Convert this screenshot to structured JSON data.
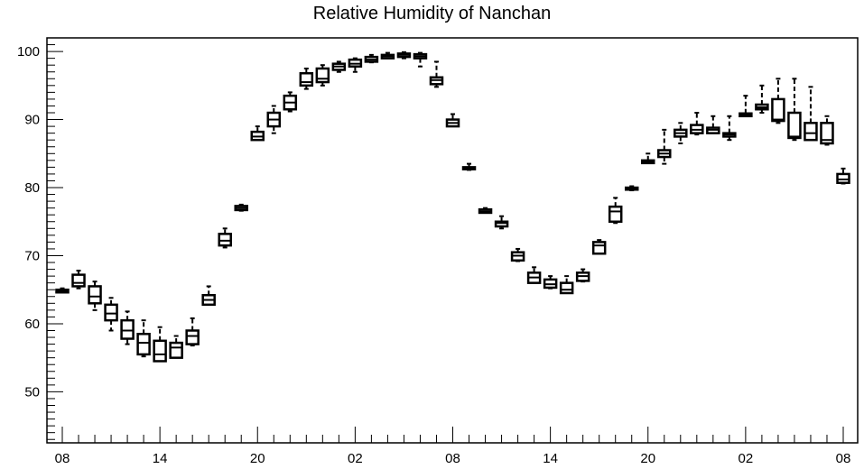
{
  "chart_data": {
    "type": "box",
    "title": "Relative Humidity of Nanchan",
    "xlabel": "",
    "ylabel": "",
    "ylim": [
      42.5,
      102
    ],
    "yticks": [
      50,
      60,
      70,
      80,
      90,
      100
    ],
    "x_tick_labels": [
      "08",
      "14",
      "20",
      "02",
      "08",
      "14",
      "20",
      "02",
      "08"
    ],
    "x_tick_hours": [
      0,
      6,
      12,
      18,
      24,
      30,
      36,
      42,
      48
    ],
    "grid": false,
    "boxes": [
      {
        "hour": 0,
        "min": 64.6,
        "q1": 64.6,
        "median": 64.8,
        "q3": 65.0,
        "max": 65.2
      },
      {
        "hour": 1,
        "min": 65.2,
        "q1": 65.5,
        "median": 66.0,
        "q3": 67.2,
        "max": 67.8
      },
      {
        "hour": 2,
        "min": 62.0,
        "q1": 63.0,
        "median": 64.0,
        "q3": 65.5,
        "max": 66.2
      },
      {
        "hour": 3,
        "min": 59.0,
        "q1": 60.5,
        "median": 61.5,
        "q3": 62.8,
        "max": 63.8
      },
      {
        "hour": 4,
        "min": 57.0,
        "q1": 57.8,
        "median": 59.0,
        "q3": 60.5,
        "max": 61.8
      },
      {
        "hour": 5,
        "min": 55.2,
        "q1": 55.5,
        "median": 57.2,
        "q3": 58.5,
        "max": 60.5
      },
      {
        "hour": 6,
        "min": 54.5,
        "q1": 54.5,
        "median": 55.5,
        "q3": 57.5,
        "max": 59.5
      },
      {
        "hour": 7,
        "min": 55.0,
        "q1": 55.0,
        "median": 56.5,
        "q3": 57.2,
        "max": 58.2
      },
      {
        "hour": 8,
        "min": 56.8,
        "q1": 57.0,
        "median": 58.2,
        "q3": 59.0,
        "max": 60.8
      },
      {
        "hour": 9,
        "min": 62.8,
        "q1": 62.8,
        "median": 63.5,
        "q3": 64.2,
        "max": 65.5
      },
      {
        "hour": 10,
        "min": 71.2,
        "q1": 71.5,
        "median": 72.2,
        "q3": 73.2,
        "max": 74.0
      },
      {
        "hour": 11,
        "min": 76.6,
        "q1": 76.7,
        "median": 77.0,
        "q3": 77.3,
        "max": 77.5
      },
      {
        "hour": 12,
        "min": 87.0,
        "q1": 87.0,
        "median": 87.5,
        "q3": 88.2,
        "max": 89.0
      },
      {
        "hour": 13,
        "min": 88.0,
        "q1": 89.0,
        "median": 90.0,
        "q3": 91.0,
        "max": 92.0
      },
      {
        "hour": 14,
        "min": 91.2,
        "q1": 91.5,
        "median": 92.5,
        "q3": 93.5,
        "max": 94.0
      },
      {
        "hour": 15,
        "min": 94.5,
        "q1": 95.0,
        "median": 95.5,
        "q3": 96.8,
        "max": 97.5
      },
      {
        "hour": 16,
        "min": 95.0,
        "q1": 95.5,
        "median": 96.0,
        "q3": 97.5,
        "max": 98.0
      },
      {
        "hour": 17,
        "min": 97.0,
        "q1": 97.3,
        "median": 97.8,
        "q3": 98.2,
        "max": 98.5
      },
      {
        "hour": 18,
        "min": 97.0,
        "q1": 97.8,
        "median": 98.2,
        "q3": 98.8,
        "max": 99.0
      },
      {
        "hour": 19,
        "min": 98.4,
        "q1": 98.5,
        "median": 98.8,
        "q3": 99.2,
        "max": 99.5
      },
      {
        "hour": 20,
        "min": 99.0,
        "q1": 99.0,
        "median": 99.3,
        "q3": 99.5,
        "max": 99.8
      },
      {
        "hour": 21,
        "min": 99.0,
        "q1": 99.2,
        "median": 99.5,
        "q3": 99.7,
        "max": 99.9
      },
      {
        "hour": 22,
        "min": 97.8,
        "q1": 99.0,
        "median": 99.3,
        "q3": 99.6,
        "max": 99.8
      },
      {
        "hour": 23,
        "min": 94.8,
        "q1": 95.2,
        "median": 95.8,
        "q3": 96.2,
        "max": 98.5
      },
      {
        "hour": 24,
        "min": 89.0,
        "q1": 89.0,
        "median": 89.5,
        "q3": 90.0,
        "max": 90.8
      },
      {
        "hour": 25,
        "min": 82.6,
        "q1": 82.7,
        "median": 82.9,
        "q3": 83.0,
        "max": 83.5
      },
      {
        "hour": 26,
        "min": 76.3,
        "q1": 76.3,
        "median": 76.5,
        "q3": 76.8,
        "max": 77.0
      },
      {
        "hour": 27,
        "min": 74.0,
        "q1": 74.3,
        "median": 74.8,
        "q3": 75.0,
        "max": 75.8
      },
      {
        "hour": 28,
        "min": 69.2,
        "q1": 69.3,
        "median": 70.0,
        "q3": 70.5,
        "max": 71.0
      },
      {
        "hour": 29,
        "min": 66.0,
        "q1": 66.0,
        "median": 66.8,
        "q3": 67.5,
        "max": 68.3
      },
      {
        "hour": 30,
        "min": 65.2,
        "q1": 65.3,
        "median": 65.8,
        "q3": 66.5,
        "max": 67.0
      },
      {
        "hour": 31,
        "min": 64.5,
        "q1": 64.5,
        "median": 65.0,
        "q3": 66.0,
        "max": 67.0
      },
      {
        "hour": 32,
        "min": 66.2,
        "q1": 66.3,
        "median": 67.0,
        "q3": 67.5,
        "max": 68.0
      },
      {
        "hour": 33,
        "min": 70.3,
        "q1": 70.3,
        "median": 71.5,
        "q3": 72.0,
        "max": 72.3
      },
      {
        "hour": 34,
        "min": 74.8,
        "q1": 75.0,
        "median": 76.5,
        "q3": 77.2,
        "max": 78.5
      },
      {
        "hour": 35,
        "min": 79.6,
        "q1": 79.7,
        "median": 79.9,
        "q3": 80.0,
        "max": 80.2
      },
      {
        "hour": 36,
        "min": 83.6,
        "q1": 83.6,
        "median": 83.8,
        "q3": 84.0,
        "max": 85.0
      },
      {
        "hour": 37,
        "min": 83.5,
        "q1": 84.5,
        "median": 85.0,
        "q3": 85.5,
        "max": 88.5
      },
      {
        "hour": 38,
        "min": 86.5,
        "q1": 87.5,
        "median": 88.0,
        "q3": 88.5,
        "max": 89.5
      },
      {
        "hour": 39,
        "min": 87.8,
        "q1": 88.0,
        "median": 88.5,
        "q3": 89.2,
        "max": 91.0
      },
      {
        "hour": 40,
        "min": 88.0,
        "q1": 88.0,
        "median": 88.5,
        "q3": 88.8,
        "max": 90.5
      },
      {
        "hour": 41,
        "min": 87.0,
        "q1": 87.5,
        "median": 87.8,
        "q3": 88.0,
        "max": 90.5
      },
      {
        "hour": 42,
        "min": 90.5,
        "q1": 90.5,
        "median": 90.7,
        "q3": 90.9,
        "max": 93.5
      },
      {
        "hour": 43,
        "min": 91.0,
        "q1": 91.5,
        "median": 91.8,
        "q3": 92.2,
        "max": 95.0
      },
      {
        "hour": 44,
        "min": 89.5,
        "q1": 89.8,
        "median": 90.0,
        "q3": 93.0,
        "max": 96.0
      },
      {
        "hour": 45,
        "min": 87.0,
        "q1": 87.3,
        "median": 87.5,
        "q3": 91.0,
        "max": 96.0
      },
      {
        "hour": 46,
        "min": 87.0,
        "q1": 87.0,
        "median": 88.0,
        "q3": 89.5,
        "max": 94.8
      },
      {
        "hour": 47,
        "min": 86.3,
        "q1": 86.5,
        "median": 87.0,
        "q3": 89.5,
        "max": 90.5
      },
      {
        "hour": 48,
        "min": 80.6,
        "q1": 80.7,
        "median": 81.2,
        "q3": 82.0,
        "max": 82.8
      }
    ]
  }
}
